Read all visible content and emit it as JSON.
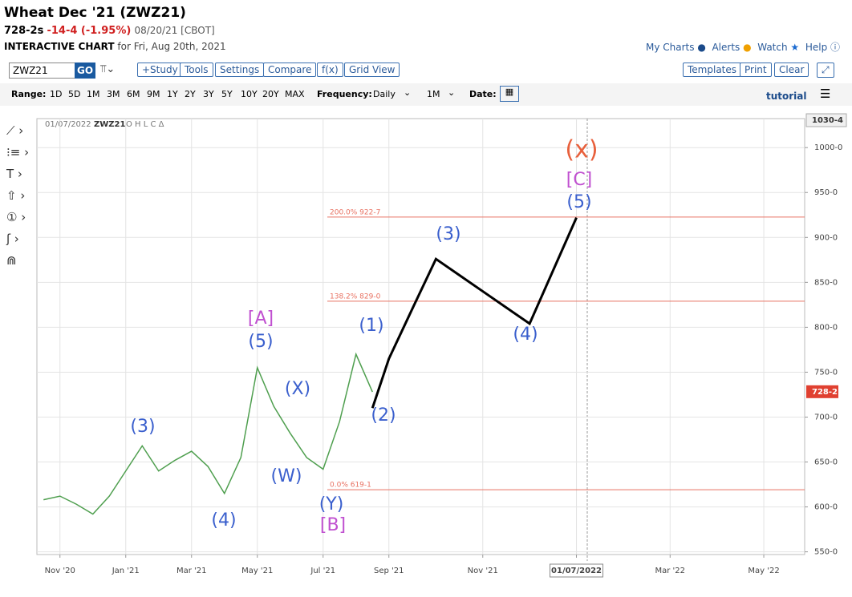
{
  "header": {
    "title": "Wheat Dec '21 (ZWZ21)",
    "last": "728-2s",
    "change": "-14-4 (-1.95%)",
    "date": "08/20/21 [CBOT]",
    "chart_label": "INTERACTIVE CHART",
    "chart_for": "for Fri, Aug 20th, 2021",
    "links": [
      "My Charts",
      "Alerts",
      "Watch",
      "Help"
    ]
  },
  "toolbar": {
    "symbol": "ZWZ21",
    "go": "GO",
    "left_buttons": [
      "+Study",
      "Tools",
      "Settings",
      "Compare",
      "f(x)",
      "Grid View"
    ],
    "right_buttons": [
      "Templates",
      "Print",
      "Clear"
    ]
  },
  "range_bar": {
    "range_label": "Range:",
    "ranges": [
      "1D",
      "5D",
      "1M",
      "3M",
      "6M",
      "9M",
      "1Y",
      "2Y",
      "3Y",
      "5Y",
      "10Y",
      "20Y",
      "MAX"
    ],
    "frequency_label": "Frequency:",
    "frequency": "Daily",
    "interval": "1M",
    "date_label": "Date:",
    "tutorial": "tutorial"
  },
  "chart_data": {
    "type": "line",
    "legend": {
      "date": "01/07/2022",
      "symbol": "ZWZ21",
      "fields": "O H L C Δ"
    },
    "categories": [
      null,
      "Nov '20",
      null,
      null,
      null,
      "Jan '21",
      null,
      null,
      null,
      "Mar '21",
      null,
      null,
      null,
      "May '21",
      null,
      null,
      null,
      "Jul '21",
      null,
      null,
      null,
      "Sep '21",
      null,
      null,
      null,
      "Nov '21",
      null,
      null,
      null,
      "01/07/2022",
      null,
      null,
      null,
      "Mar '22",
      null,
      null,
      null,
      "May '22",
      null,
      null
    ],
    "series": [
      {
        "color": "#4f9f4f",
        "values": [
          608,
          612,
          603,
          592,
          612,
          640,
          668,
          640,
          652,
          662,
          645,
          615,
          655,
          755,
          712,
          682,
          655,
          642,
          695,
          770,
          728,
          null,
          null,
          null,
          null,
          null,
          null,
          null,
          null,
          null,
          null,
          null,
          null,
          null,
          null,
          null,
          null,
          null,
          null,
          null
        ]
      },
      {
        "color": "#000000",
        "values": [
          null,
          null,
          null,
          null,
          null,
          null,
          null,
          null,
          null,
          null,
          null,
          null,
          null,
          null,
          null,
          null,
          null,
          null,
          null,
          null,
          710,
          765,
          821,
          876,
          858,
          840,
          822,
          804,
          863,
          922,
          null,
          null,
          null,
          null,
          null,
          null,
          null,
          null,
          null,
          null
        ]
      }
    ],
    "ylim": [
      547,
      1030.5
    ],
    "yticks": [
      {
        "value": 550,
        "label": "550-0"
      },
      {
        "value": 600,
        "label": "600-0"
      },
      {
        "value": 650,
        "label": "650-0"
      },
      {
        "value": 700,
        "label": "700-0"
      },
      {
        "value": 750,
        "label": "750-0"
      },
      {
        "value": 800,
        "label": "800-0"
      },
      {
        "value": 850,
        "label": "850-0"
      },
      {
        "value": 900,
        "label": "900-0"
      },
      {
        "value": 950,
        "label": "950-0"
      },
      {
        "value": 1000,
        "label": "1000-0"
      }
    ],
    "grid": true,
    "levels": [
      {
        "value": 922.7,
        "label": "200.0% 922-7"
      },
      {
        "value": 829.0,
        "label": "138.2% 829-0"
      },
      {
        "value": 619.1,
        "label": "0.0% 619-1"
      }
    ],
    "level_color": "#e87060",
    "last_price": {
      "value": 728.25,
      "label": "728-2"
    },
    "top_price": {
      "value": 1030.5,
      "label": "1030-4"
    },
    "annotations": [
      {
        "text": "(3)",
        "color": "#3a5fcd"
      },
      {
        "text": "(4)",
        "color": "#3a5fcd"
      },
      {
        "text": "[A]",
        "color": "#c050d0"
      },
      {
        "text": "(5)",
        "color": "#3a5fcd"
      },
      {
        "text": "(X)",
        "color": "#3a5fcd"
      },
      {
        "text": "(W)",
        "color": "#3a5fcd"
      },
      {
        "text": "(Y)",
        "color": "#3a5fcd"
      },
      {
        "text": "[B]",
        "color": "#c050d0"
      },
      {
        "text": "(1)",
        "color": "#3a5fcd"
      },
      {
        "text": "(2)",
        "color": "#3a5fcd"
      },
      {
        "text": "(3)",
        "color": "#3a5fcd"
      },
      {
        "text": "(4)",
        "color": "#3a5fcd"
      },
      {
        "text": "(x)",
        "color": "#e8603c"
      },
      {
        "text": "[C]",
        "color": "#c050d0"
      },
      {
        "text": "(5)",
        "color": "#3a5fcd"
      }
    ]
  }
}
